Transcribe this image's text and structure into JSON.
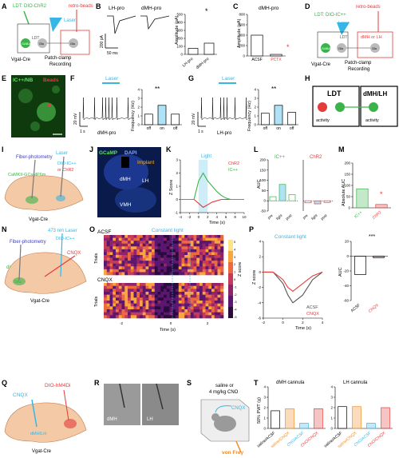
{
  "panels": {
    "A": {
      "letter": "A",
      "ldt": "LDT: DIO-ChR2",
      "laser": "Laser",
      "retro": "retro-beads",
      "ldt_box": "LDT",
      "gaba": "GABA",
      "glu1": "Glu",
      "glu2": "Glu",
      "vgat": "Vgat-Cre",
      "pc1": "Patch-clamp",
      "pc2": "Recording"
    },
    "B": {
      "letter": "B",
      "lh": "LH-pro",
      "dmh": "dMH-pro",
      "scale_pa": "200 pA",
      "scale_ms": "50 ms",
      "ylabel": "Amplitude (pA)",
      "star": "*"
    },
    "C": {
      "letter": "C",
      "title": "dMH-pro",
      "ylabel": "Amplitude (pA)",
      "star": "*"
    },
    "D": {
      "letter": "D",
      "ldt": "LDT: DIO-IC++",
      "laser": "Laser",
      "retro": "retro-beads",
      "ldt_box": "LDT",
      "target": "dMH or LH",
      "gaba": "GABA",
      "glu1": "Glu",
      "glu2": "Glu",
      "vgat": "Vgat-Cre",
      "pc1": "Patch-clamp",
      "pc2": "Recording"
    },
    "E": {
      "letter": "E",
      "label1": "IC++/NB",
      "label2": "Beads"
    },
    "F": {
      "letter": "F",
      "laser": "Laser",
      "scale": "20 mV",
      "time": "1 s",
      "trace": "dMH-pro",
      "ylabel": "Frequency (Hz)",
      "stars": "**"
    },
    "G": {
      "letter": "G",
      "laser": "Laser",
      "scale": "20 mV",
      "time": "1 s",
      "trace": "LH-pro",
      "ylabel": "Frequency (Hz)",
      "stars": "**"
    },
    "H": {
      "letter": "H",
      "ldt": "LDT",
      "dmh": "dMH/LH",
      "act1": "activity",
      "act2": "activity"
    },
    "I": {
      "letter": "I",
      "fp": "Fiber-photometry",
      "laser": "Laser",
      "virus1": "CaMKII-GCaMP6m",
      "virus2a": "DIO-IC++",
      "virus2b": "or ChR2",
      "vgat": "Vgat-Cre"
    },
    "J": {
      "letter": "J",
      "gcamp": "GCaMP",
      "dapi": "DAPI",
      "implant": "Implant",
      "dmh": "dMH",
      "lh": "LH",
      "vmh": "VMH"
    },
    "K": {
      "letter": "K",
      "light": "Light",
      "leg1": "ChR2",
      "leg2": "IC++",
      "ylabel": "Z Score",
      "xlabel": "Time (s)"
    },
    "L": {
      "letter": "L",
      "t1": "IC++",
      "t2": "ChR2",
      "ylabel": "AUC"
    },
    "M": {
      "letter": "M",
      "ylabel": "Absolute AUC",
      "star": "*"
    },
    "N": {
      "letter": "N",
      "fp": "Fiber-photometry",
      "laser": "473 nm Laser",
      "dio": "DIO-IC++",
      "cnqx": "CNQX",
      "dlight": "dLight",
      "nac": "NAc",
      "vgat": "Vgat-Cre"
    },
    "O": {
      "letter": "O",
      "acsf": "ACSF",
      "cnqx": "CNQX",
      "cl": "Constant light",
      "trials": "Trials",
      "xlabel": "Time (s)",
      "cbar": "Z score"
    },
    "P": {
      "letter": "P",
      "cl": "Constant light",
      "ylabel": "Z score",
      "xlabel": "Time (s)",
      "leg1": "ACSF",
      "leg2": "CNQX",
      "ylabel2": "AUC",
      "stars": "***"
    },
    "Q": {
      "letter": "Q",
      "cnqx": "CNQX",
      "virus": "DIO-hM4Di",
      "target": "dMH/LH",
      "vgat": "Vgat-Cre"
    },
    "R": {
      "letter": "R",
      "dmh": "dMH",
      "lh": "LH"
    },
    "S": {
      "letter": "S",
      "line1": "saline or",
      "line2": "4 mg/kg CNO",
      "cnqx": "CNQX",
      "vf": "von Frey"
    },
    "T": {
      "letter": "T",
      "t1": "dMH cannula",
      "t2": "LH cannula",
      "ylabel": "50% PWT (g)"
    }
  },
  "chart_data": [
    {
      "type": "bar",
      "panel": "B",
      "categories": [
        "LH-pro",
        "dMH-pro"
      ],
      "values": [
        75,
        140
      ],
      "ylim": [
        0,
        500
      ],
      "ylabel": "Amplitude (pA)"
    },
    {
      "type": "bar",
      "panel": "C",
      "categories": [
        "ACSF",
        "PCTX"
      ],
      "values": [
        400,
        30
      ],
      "ylim": [
        0,
        800
      ],
      "ylabel": "Amplitude (pA)",
      "title": "dMH-pro"
    },
    {
      "type": "bar",
      "panel": "F",
      "categories": [
        "off",
        "on",
        "off"
      ],
      "values": [
        1.2,
        2.2,
        1.2
      ],
      "ylim": [
        0,
        4
      ],
      "ylabel": "Frequency (Hz)"
    },
    {
      "type": "bar",
      "panel": "G",
      "categories": [
        "off",
        "on",
        "off"
      ],
      "values": [
        1.3,
        2.2,
        1.4
      ],
      "ylim": [
        0,
        4
      ],
      "ylabel": "Frequency (Hz)"
    },
    {
      "type": "line",
      "panel": "K",
      "x": [
        -4,
        -3,
        -2,
        -1,
        0,
        1,
        2,
        3,
        4,
        5,
        6,
        7,
        8,
        9,
        10
      ],
      "series": [
        {
          "name": "ChR2",
          "values": [
            0,
            0,
            0,
            0,
            -0.3,
            -0.6,
            -0.4,
            -0.2,
            -0.1,
            0,
            0,
            0,
            0,
            0,
            0
          ]
        },
        {
          "name": "IC++",
          "values": [
            0,
            0,
            0,
            0,
            1.4,
            2.0,
            1.4,
            1.0,
            0.6,
            0.3,
            0.1,
            0,
            0,
            0,
            0
          ]
        }
      ],
      "ylim": [
        -1,
        3
      ],
      "xlabel": "Time (s)",
      "ylabel": "Z Score"
    },
    {
      "type": "bar",
      "panel": "L",
      "categories": [
        "pre",
        "light",
        "post"
      ],
      "series": [
        {
          "name": "IC++",
          "values": [
            20,
            80,
            30
          ]
        },
        {
          "name": "ChR2",
          "values": [
            -10,
            -15,
            -8
          ]
        }
      ],
      "ylim": [
        -50,
        200
      ],
      "ylabel": "AUC"
    },
    {
      "type": "bar",
      "panel": "M",
      "categories": [
        "IC++",
        "ChR2"
      ],
      "values": [
        85,
        15
      ],
      "ylim": [
        0,
        200
      ],
      "ylabel": "Absolute AUC"
    },
    {
      "type": "line",
      "panel": "P",
      "x": [
        -2,
        -1,
        0,
        0.5,
        1,
        2,
        3,
        4
      ],
      "series": [
        {
          "name": "ACSF",
          "values": [
            0,
            0,
            -1.5,
            -3,
            -4,
            -3,
            -1,
            0
          ]
        },
        {
          "name": "CNQX",
          "values": [
            0,
            0,
            -1,
            -2,
            -2.5,
            -1.5,
            -0.5,
            0
          ]
        }
      ],
      "ylim": [
        -6,
        4
      ],
      "xlabel": "Time (s)",
      "ylabel": "Z score"
    },
    {
      "type": "bar",
      "panel": "P-AUC",
      "categories": [
        "ACSF",
        "CNQX"
      ],
      "values": [
        -25,
        -2
      ],
      "ylim": [
        -60,
        20
      ],
      "ylabel": "AUC"
    },
    {
      "type": "bar",
      "panel": "T-dMH",
      "categories": [
        "saline/ACSF",
        "saline/CNQX",
        "CNO/ACSF",
        "CNO/CNQX"
      ],
      "values": [
        1.7,
        1.9,
        0.5,
        1.9
      ],
      "ylim": [
        0,
        4
      ],
      "ylabel": "50% PWT (g)"
    },
    {
      "type": "bar",
      "panel": "T-LH",
      "categories": [
        "saline/ACSF",
        "saline/CNQX",
        "CNO/ACSF",
        "CNO/CNQX"
      ],
      "values": [
        2.1,
        2.1,
        0.5,
        2.0
      ],
      "ylim": [
        0,
        4
      ],
      "ylabel": "50% PWT (g)"
    }
  ],
  "colors": {
    "red": "#e63b3b",
    "cyan": "#36b6e5",
    "green": "#3bb34a",
    "orange": "#f08a24",
    "gray": "#888888"
  }
}
